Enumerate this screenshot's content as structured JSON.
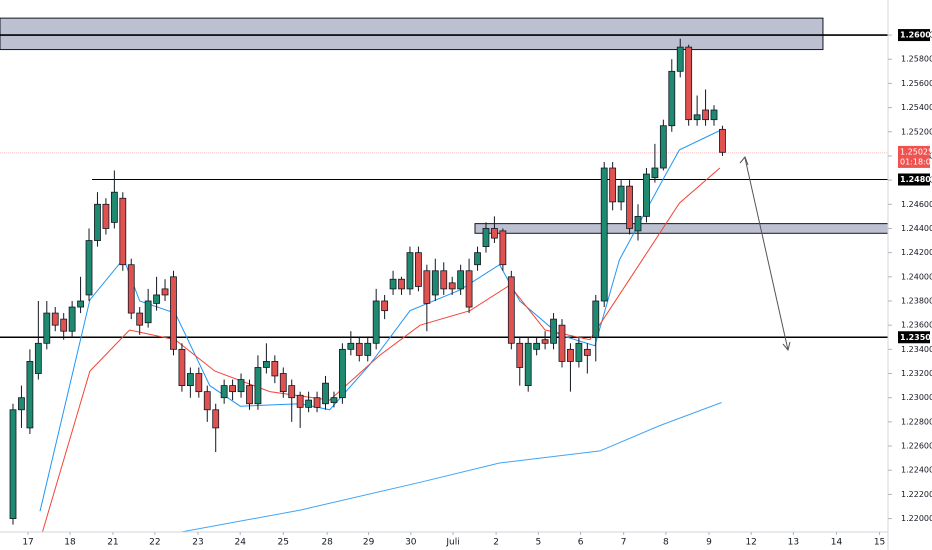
{
  "chart_data": {
    "type": "candlestick",
    "colors": {
      "up": "#1f8a70",
      "down": "#e0524f"
    },
    "open": [
      1.22,
      1.229,
      1.2275,
      1.232,
      1.2345,
      1.237,
      1.2365,
      1.2355,
      1.2375,
      1.2385,
      1.243,
      1.246,
      1.2445,
      1.2465,
      1.241,
      1.237,
      1.2362,
      1.2378,
      1.239,
      1.24,
      1.234,
      1.231,
      1.232,
      1.2305,
      1.229,
      1.23,
      1.231,
      1.2305,
      1.231,
      1.2295,
      1.2325,
      1.233,
      1.232,
      1.231,
      1.2302,
      1.2292,
      1.23,
      1.2295,
      1.2296,
      1.23,
      1.234,
      1.2345,
      1.2335,
      1.2345,
      1.238,
      1.239,
      1.2398,
      1.239,
      1.242,
      1.2405,
      1.2385,
      1.2405,
      1.2395,
      1.239,
      1.2405,
      1.241,
      1.2425,
      1.244,
      1.2438,
      1.24,
      1.2345,
      1.231,
      1.234,
      1.2348,
      1.2345,
      1.236,
      1.234,
      1.233,
      1.234,
      1.235,
      1.238,
      1.249,
      1.2462,
      1.2475,
      1.2438,
      1.245,
      1.2482,
      1.249,
      1.2525,
      1.257,
      1.259,
      1.253,
      1.2538,
      1.253,
      1.2522
    ],
    "high": [
      1.2295,
      1.231,
      1.234,
      1.238,
      1.238,
      1.2375,
      1.237,
      1.238,
      1.24,
      1.244,
      1.247,
      1.2465,
      1.2488,
      1.247,
      1.2415,
      1.2375,
      1.239,
      1.24,
      1.2398,
      1.2405,
      1.2345,
      1.2325,
      1.2325,
      1.231,
      1.2295,
      1.2315,
      1.2315,
      1.232,
      1.2315,
      1.2335,
      1.2345,
      1.2335,
      1.2325,
      1.2315,
      1.2305,
      1.2305,
      1.2305,
      1.2318,
      1.2305,
      1.2345,
      1.2355,
      1.235,
      1.235,
      1.239,
      1.2385,
      1.2405,
      1.24,
      1.2425,
      1.2425,
      1.241,
      1.2415,
      1.2412,
      1.24,
      1.241,
      1.2415,
      1.2425,
      1.2445,
      1.245,
      1.244,
      1.2405,
      1.235,
      1.235,
      1.235,
      1.2355,
      1.237,
      1.2365,
      1.2345,
      1.235,
      1.2345,
      1.2385,
      1.2495,
      1.2495,
      1.248,
      1.248,
      1.246,
      1.249,
      1.251,
      1.253,
      1.258,
      1.2597,
      1.2592,
      1.255,
      1.2555,
      1.2542,
      1.2525
    ],
    "low": [
      1.2195,
      1.2275,
      1.227,
      1.2315,
      1.234,
      1.2355,
      1.2348,
      1.235,
      1.237,
      1.238,
      1.2425,
      1.2435,
      1.244,
      1.2405,
      1.2365,
      1.2352,
      1.2358,
      1.2372,
      1.238,
      1.2335,
      1.2305,
      1.23,
      1.23,
      1.228,
      1.2255,
      1.2295,
      1.2298,
      1.23,
      1.229,
      1.229,
      1.232,
      1.2312,
      1.23,
      1.228,
      1.2275,
      1.2288,
      1.2288,
      1.229,
      1.2292,
      1.2295,
      1.2335,
      1.233,
      1.233,
      1.234,
      1.2365,
      1.2385,
      1.2385,
      1.2385,
      1.2388,
      1.2355,
      1.238,
      1.2385,
      1.2385,
      1.2385,
      1.237,
      1.2405,
      1.242,
      1.2428,
      1.2405,
      1.234,
      1.231,
      1.2305,
      1.2335,
      1.234,
      1.234,
      1.2325,
      1.2305,
      1.2325,
      1.232,
      1.233,
      1.2375,
      1.2455,
      1.2455,
      1.2435,
      1.243,
      1.2445,
      1.2478,
      1.2488,
      1.252,
      1.2565,
      1.2525,
      1.2525,
      1.2525,
      1.2525,
      1.25
    ],
    "close": [
      1.229,
      1.23,
      1.233,
      1.2345,
      1.237,
      1.236,
      1.2355,
      1.2375,
      1.238,
      1.243,
      1.246,
      1.244,
      1.247,
      1.241,
      1.237,
      1.236,
      1.238,
      1.2385,
      1.2385,
      1.234,
      1.231,
      1.232,
      1.2305,
      1.229,
      1.2275,
      1.231,
      1.2305,
      1.2315,
      1.2295,
      1.2325,
      1.233,
      1.2318,
      1.2305,
      1.23,
      1.2292,
      1.2298,
      1.2292,
      1.2312,
      1.23,
      1.234,
      1.2345,
      1.2335,
      1.2345,
      1.238,
      1.2372,
      1.2398,
      1.239,
      1.242,
      1.2392,
      1.2378,
      1.2405,
      1.239,
      1.239,
      1.2405,
      1.2375,
      1.242,
      1.244,
      1.2432,
      1.241,
      1.2345,
      1.2325,
      1.2345,
      1.2345,
      1.2345,
      1.2365,
      1.233,
      1.233,
      1.2345,
      1.2335,
      1.238,
      1.249,
      1.2462,
      1.2475,
      1.244,
      1.245,
      1.2485,
      1.249,
      1.2525,
      1.257,
      1.259,
      1.253,
      1.2534,
      1.253,
      1.2538,
      1.2503
    ],
    "moving_averages": [
      {
        "color": "#2196f3",
        "x": [
          3.2,
          9.1,
          13.1,
          15.0,
          19.2,
          23.3,
          26.9,
          34.0,
          37.5,
          42.2,
          47.0,
          52.9,
          57.6,
          60.0,
          64.7,
          68.9,
          71.8,
          76.6,
          78.9,
          83.7
        ],
        "values": [
          1.2206,
          1.2381,
          1.2415,
          1.238,
          1.237,
          1.231,
          1.2293,
          1.2295,
          1.229,
          1.2327,
          1.2372,
          1.2389,
          1.241,
          1.238,
          1.2352,
          1.2343,
          1.2414,
          1.2476,
          1.2505,
          1.2521
        ]
      },
      {
        "color": "#f44336",
        "x": [
          3.2,
          9.1,
          13.8,
          19.2,
          23.9,
          30.4,
          37.5,
          43.4,
          48.2,
          54.1,
          58.8,
          63.0,
          68.3,
          73.0,
          78.9,
          83.7
        ],
        "values": [
          1.2182,
          1.2322,
          1.2356,
          1.2348,
          1.2322,
          1.2305,
          1.2298,
          1.2335,
          1.236,
          1.2372,
          1.2393,
          1.2356,
          1.2348,
          1.2398,
          1.2461,
          1.249
        ]
      },
      {
        "color": "#42a5f5",
        "x": [
          19.2,
          34.0,
          48.2,
          57.6,
          69.5,
          76.6,
          83.9
        ],
        "values": [
          1.2188,
          1.2207,
          1.223,
          1.2246,
          1.2256,
          1.2277,
          1.2296
        ]
      }
    ],
    "zones": [
      {
        "xlim": [
          -1.54,
          95.9
        ],
        "ylim": [
          1.2588,
          1.2614
        ],
        "color": "#b2b5c8"
      },
      {
        "xlim": [
          54.7,
          103.6
        ],
        "ylim": [
          1.2436,
          1.2444
        ],
        "color": "#b2b5c8"
      }
    ],
    "levels": [
      {
        "value": 1.26,
        "label": "1.26000",
        "from": -1.54
      },
      {
        "value": 1.24805,
        "label": "1.24805",
        "from": 9.35
      },
      {
        "value": 1.235,
        "label": "1.23500",
        "from": -1.54
      }
    ],
    "last_price": {
      "value": 1.25025,
      "label": "1.25025",
      "countdown": "01:18:09",
      "color": "#ef5350"
    },
    "xlim": [
      -1.54,
      103.6
    ],
    "ylim": [
      1.2174,
      1.2629
    ],
    "xticks": [
      {
        "value": 1.78,
        "label": "17"
      },
      {
        "value": 6.75,
        "label": "18"
      },
      {
        "value": 11.83,
        "label": "21"
      },
      {
        "value": 16.8,
        "label": "22"
      },
      {
        "value": 21.9,
        "label": "23"
      },
      {
        "value": 26.9,
        "label": "24"
      },
      {
        "value": 32.0,
        "label": "25"
      },
      {
        "value": 37.2,
        "label": "28"
      },
      {
        "value": 42.1,
        "label": "29"
      },
      {
        "value": 47.1,
        "label": "30"
      },
      {
        "value": 52.1,
        "label": "Juli"
      },
      {
        "value": 57.2,
        "label": "2"
      },
      {
        "value": 62.2,
        "label": "5"
      },
      {
        "value": 67.2,
        "label": "6"
      },
      {
        "value": 72.3,
        "label": "7"
      },
      {
        "value": 77.3,
        "label": "8"
      },
      {
        "value": 82.4,
        "label": "9"
      },
      {
        "value": 87.4,
        "label": "12"
      },
      {
        "value": 92.4,
        "label": "13"
      },
      {
        "value": 97.5,
        "label": "14"
      },
      {
        "value": 102.6,
        "label": "15"
      }
    ],
    "yticks": [
      {
        "value": 1.22,
        "label": "1.22000"
      },
      {
        "value": 1.222,
        "label": "1.22200"
      },
      {
        "value": 1.224,
        "label": "1.22400"
      },
      {
        "value": 1.226,
        "label": "1.22600"
      },
      {
        "value": 1.228,
        "label": "1.22800"
      },
      {
        "value": 1.23,
        "label": "1.23000"
      },
      {
        "value": 1.232,
        "label": "1.23200"
      },
      {
        "value": 1.234,
        "label": "1.23400"
      },
      {
        "value": 1.236,
        "label": "1.23600"
      },
      {
        "value": 1.238,
        "label": "1.23800"
      },
      {
        "value": 1.24,
        "label": "1.24000"
      },
      {
        "value": 1.242,
        "label": "1.24200"
      },
      {
        "value": 1.244,
        "label": "1.24400"
      },
      {
        "value": 1.246,
        "label": "1.24600"
      },
      {
        "value": 1.248,
        "label": "1.24800"
      },
      {
        "value": 1.25,
        "label": "1.25000"
      },
      {
        "value": 1.252,
        "label": "1.25200"
      },
      {
        "value": 1.254,
        "label": "1.25400"
      },
      {
        "value": 1.256,
        "label": "1.25600"
      },
      {
        "value": 1.258,
        "label": "1.25800"
      },
      {
        "value": 1.26,
        "label": "1.26000"
      }
    ]
  }
}
